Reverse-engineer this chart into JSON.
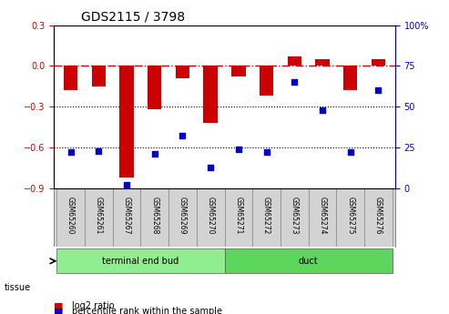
{
  "title": "GDS2115 / 3798",
  "samples": [
    "GSM65260",
    "GSM65261",
    "GSM65267",
    "GSM65268",
    "GSM65269",
    "GSM65270",
    "GSM65271",
    "GSM65272",
    "GSM65273",
    "GSM65274",
    "GSM65275",
    "GSM65276"
  ],
  "log2_ratio": [
    -0.18,
    -0.15,
    -0.82,
    -0.32,
    -0.09,
    -0.42,
    -0.08,
    -0.22,
    0.07,
    0.05,
    -0.18,
    0.05
  ],
  "percentile_rank": [
    22,
    23,
    2,
    21,
    32,
    13,
    24,
    22,
    65,
    48,
    22,
    60
  ],
  "groups": [
    {
      "name": "terminal end bud",
      "samples": [
        "GSM65260",
        "GSM65261",
        "GSM65267",
        "GSM65268",
        "GSM65269",
        "GSM65270"
      ],
      "color": "#90ee90"
    },
    {
      "name": "duct",
      "samples": [
        "GSM65271",
        "GSM65272",
        "GSM65273",
        "GSM65274",
        "GSM65275",
        "GSM65276"
      ],
      "color": "#5cd65c"
    }
  ],
  "ylim_left": [
    -0.9,
    0.3
  ],
  "ylim_right": [
    0,
    100
  ],
  "bar_color": "#cc0000",
  "dot_color": "#0000cc",
  "hline_color": "#cc0000",
  "grid_color": "#000000",
  "ylabel_left_color": "#cc0000",
  "ylabel_right_color": "#0000cc",
  "tissue_label": "tissue",
  "legend_bar": "log2 ratio",
  "legend_dot": "percentile rank within the sample",
  "background_plot": "#ffffff",
  "background_sample_row": "#d3d3d3",
  "sample_row_border": "#888888"
}
